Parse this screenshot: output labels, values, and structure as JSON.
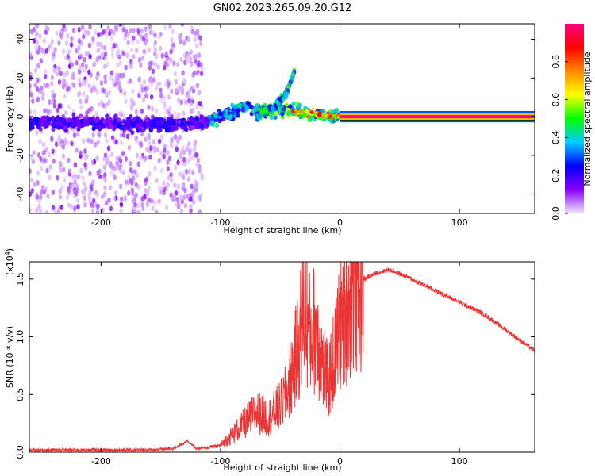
{
  "title": "GN02.2023.265.09.20.G12",
  "chart_data": [
    {
      "type": "heatmap",
      "xlabel": "Height of straight line (km)",
      "ylabel": "Frequency (Hz)",
      "xlim": [
        -260,
        163
      ],
      "ylim": [
        -50,
        48
      ],
      "xticks": [
        -200,
        -100,
        0,
        100
      ],
      "xtick_labels": [
        "-200",
        "-100",
        "0",
        "100"
      ],
      "yticks": [
        -40,
        -20,
        0,
        20,
        40
      ],
      "ytick_labels": [
        "-40",
        "-20",
        "0",
        "20",
        "40"
      ],
      "grid": false,
      "colorbar": {
        "label": "Normalized spectral amplitude",
        "range": [
          0,
          1
        ],
        "ticks": [
          0.0,
          0.2,
          0.4,
          0.6,
          0.8
        ],
        "tick_labels": [
          "0.0",
          "0.2",
          "0.4",
          "0.6",
          "0.8"
        ],
        "colormap": [
          "#f0e6ff",
          "#8800ff",
          "#0000ff",
          "#00ccff",
          "#00ff00",
          "#ffff00",
          "#ff8800",
          "#ff0000",
          "#ff0080"
        ]
      },
      "features": {
        "steady_line": {
          "x_start": 0,
          "x_end": 163,
          "frequency": 0,
          "amplitude": 1.0
        },
        "noise_region": {
          "x_start": -260,
          "x_end": -115,
          "freq_range": [
            -50,
            48
          ]
        },
        "main_trend": [
          {
            "x": -260,
            "y": -3
          },
          {
            "x": -220,
            "y": -3
          },
          {
            "x": -180,
            "y": -4
          },
          {
            "x": -150,
            "y": -4
          },
          {
            "x": -120,
            "y": -3
          },
          {
            "x": -100,
            "y": 0
          },
          {
            "x": -80,
            "y": 5
          },
          {
            "x": -60,
            "y": 3
          },
          {
            "x": -40,
            "y": 3
          },
          {
            "x": -20,
            "y": 1
          },
          {
            "x": 0,
            "y": 0
          }
        ],
        "rising_branch": [
          {
            "x": -70,
            "y": 0
          },
          {
            "x": -55,
            "y": 5
          },
          {
            "x": -45,
            "y": 12
          },
          {
            "x": -40,
            "y": 20
          },
          {
            "x": -38,
            "y": 24
          }
        ]
      }
    },
    {
      "type": "line",
      "xlabel": "Height of straight line (km)",
      "ylabel": "SNR (10 * v/v)",
      "y_multiplier": "(x10^4)",
      "xlim": [
        -260,
        163
      ],
      "ylim": [
        0,
        1.65
      ],
      "xticks": [
        -200,
        -100,
        0,
        100
      ],
      "xtick_labels": [
        "-200",
        "-100",
        "0",
        "100"
      ],
      "yticks": [
        0.0,
        0.5,
        1.0,
        1.5
      ],
      "ytick_labels": [
        "0.0",
        "0.5",
        "1.0",
        "1.5"
      ],
      "grid": false,
      "color": "#ee3333",
      "x": [
        -260,
        -240,
        -220,
        -200,
        -180,
        -160,
        -140,
        -132,
        -128,
        -120,
        -110,
        -100,
        -90,
        -80,
        -70,
        -60,
        -50,
        -45,
        -40,
        -35,
        -30,
        -25,
        -20,
        -15,
        -10,
        -5,
        0,
        5,
        10,
        20,
        30,
        40,
        45,
        60,
        80,
        100,
        120,
        140,
        163
      ],
      "y": [
        0.02,
        0.02,
        0.02,
        0.02,
        0.02,
        0.02,
        0.03,
        0.07,
        0.1,
        0.03,
        0.04,
        0.06,
        0.15,
        0.25,
        0.35,
        0.3,
        0.4,
        0.5,
        0.7,
        0.9,
        1.3,
        1.0,
        1.1,
        0.8,
        0.6,
        0.8,
        1.1,
        1.25,
        1.4,
        1.5,
        1.55,
        1.58,
        1.57,
        1.5,
        1.4,
        1.3,
        1.2,
        1.05,
        0.88
      ]
    }
  ]
}
